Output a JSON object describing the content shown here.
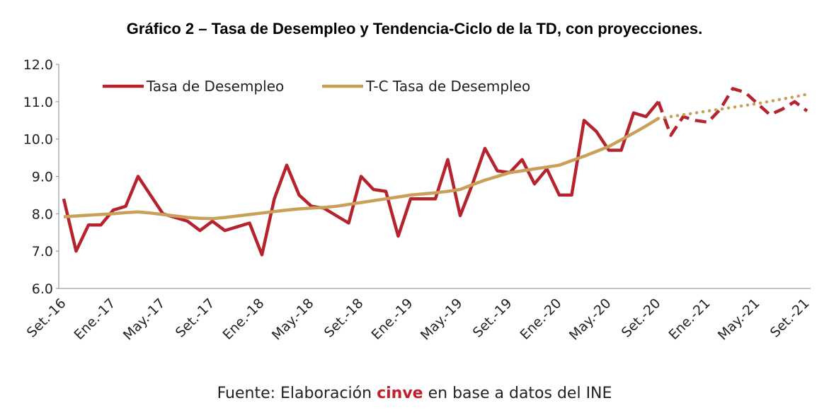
{
  "chart_data": {
    "type": "line",
    "title": "Gráfico 2 – Tasa de Desempleo y Tendencia-Ciclo de la TD, con proyecciones.",
    "source": {
      "prefix": "Fuente: Elaboración",
      "highlight": "cinve",
      "suffix": "en base a datos del INE"
    },
    "categories": [
      "Set.-16",
      null,
      null,
      null,
      "Ene.-17",
      null,
      null,
      null,
      "May.-17",
      null,
      null,
      null,
      "Set.-17",
      null,
      null,
      null,
      "Ene.-18",
      null,
      null,
      null,
      "May.-18",
      null,
      null,
      null,
      "Set.-18",
      null,
      null,
      null,
      "Ene.-19",
      null,
      null,
      null,
      "May.-19",
      null,
      null,
      null,
      "Set.-19",
      null,
      null,
      null,
      "Ene.-20",
      null,
      null,
      null,
      "May.-20",
      null,
      null,
      null,
      "Set.-20",
      null,
      null,
      null,
      "Ene.-21",
      null,
      null,
      null,
      "May.-21",
      null,
      null,
      null,
      "Set.-21"
    ],
    "projection_from": 48,
    "series": [
      {
        "name": "Tasa de Desempleo",
        "color": "#b5232e",
        "projection_style": "dashed",
        "values": [
          8.4,
          7.0,
          7.7,
          7.7,
          8.1,
          8.2,
          9.0,
          8.5,
          8.0,
          7.9,
          7.8,
          7.55,
          7.8,
          7.55,
          7.65,
          7.75,
          6.9,
          8.4,
          9.3,
          8.5,
          8.2,
          8.15,
          7.95,
          7.75,
          9.0,
          8.65,
          8.6,
          7.4,
          8.4,
          8.4,
          8.4,
          9.45,
          7.95,
          8.8,
          9.75,
          9.15,
          9.1,
          9.45,
          8.8,
          9.2,
          8.5,
          8.5,
          10.5,
          10.2,
          9.7,
          9.7,
          10.7,
          10.6,
          11.0,
          10.1,
          10.6,
          10.5,
          10.45,
          10.8,
          11.35,
          11.25,
          10.95,
          10.65,
          10.8,
          11.0,
          10.75
        ]
      },
      {
        "name": "T-C Tasa de Desempleo",
        "color": "#c9a05a",
        "projection_style": "dotted",
        "values": [
          7.92,
          7.94,
          7.96,
          7.98,
          8.0,
          8.03,
          8.05,
          8.02,
          7.98,
          7.94,
          7.9,
          7.88,
          7.87,
          7.9,
          7.94,
          7.98,
          8.02,
          8.06,
          8.1,
          8.13,
          8.15,
          8.17,
          8.2,
          8.25,
          8.3,
          8.35,
          8.4,
          8.45,
          8.5,
          8.53,
          8.56,
          8.6,
          8.65,
          8.78,
          8.9,
          9.0,
          9.1,
          9.15,
          9.2,
          9.25,
          9.3,
          9.42,
          9.54,
          9.67,
          9.8,
          9.98,
          10.16,
          10.35,
          10.55,
          10.6,
          10.65,
          10.7,
          10.75,
          10.8,
          10.85,
          10.9,
          10.95,
          11.01,
          11.07,
          11.13,
          11.2
        ]
      }
    ],
    "ylim": [
      6.0,
      12.0
    ],
    "yticks": [
      {
        "value": 6,
        "label": "6.0"
      },
      {
        "value": 7,
        "label": "7.0"
      },
      {
        "value": 8,
        "label": "8.0"
      },
      {
        "value": 9,
        "label": "9.0"
      },
      {
        "value": 10,
        "label": "10.0"
      },
      {
        "value": 11,
        "label": "11.0"
      },
      {
        "value": 12,
        "label": "12.0"
      }
    ],
    "grid": false,
    "legend": "top-left"
  }
}
